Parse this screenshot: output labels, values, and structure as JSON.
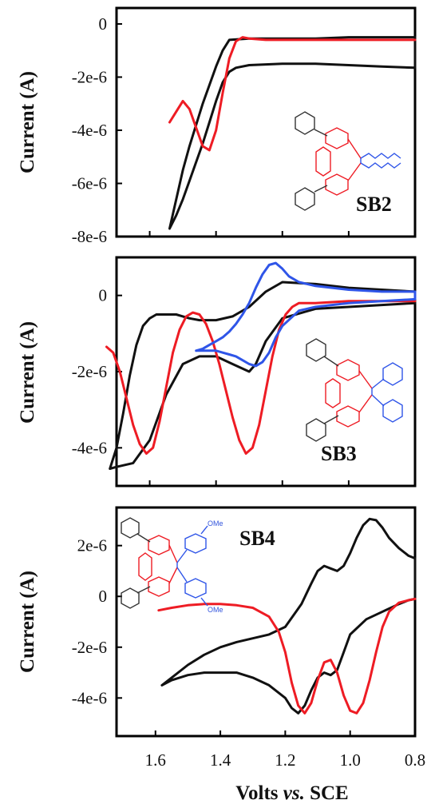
{
  "colors": {
    "black_trace": "#111111",
    "red_trace": "#ee1c24",
    "blue_trace": "#2f55e8",
    "ring_black": "#333333",
    "ring_red": "#ee1c24",
    "ring_blue": "#2f55e8"
  },
  "x_axis": {
    "label": "Volts vs. SCE",
    "label_main": "Volts ",
    "label_italic": "vs.",
    "label_tail": " SCE",
    "tick_labels": [
      "1.6",
      "1.4",
      "1.2",
      "1.0",
      "0.8"
    ]
  },
  "chart_data": [
    {
      "type": "line",
      "compound": "SB2",
      "ylabel": "Current (A)",
      "xlim": [
        1.7,
        0.8
      ],
      "ylim": [
        -8e-06,
        6e-07
      ],
      "xticks": [
        1.6,
        1.4,
        1.2,
        1.0,
        0.8
      ],
      "yticks": [
        0,
        -2e-06,
        -4e-06,
        -6e-06,
        -8e-06
      ],
      "ytick_labels": [
        "0",
        "-2e-6",
        "-4e-6",
        "-6e-6",
        "-8e-6"
      ],
      "series": [
        {
          "color": "black",
          "x": [
            1.54,
            1.52,
            1.5,
            1.48,
            1.46,
            1.44,
            1.42,
            1.4,
            1.38,
            1.36,
            1.3,
            1.2,
            1.1,
            1.0,
            0.9,
            0.8,
            0.8,
            0.9,
            1.0,
            1.1,
            1.2,
            1.3,
            1.34,
            1.36,
            1.38,
            1.4,
            1.42,
            1.44,
            1.46,
            1.48,
            1.5,
            1.52,
            1.54
          ],
          "y": [
            -7.7e-06,
            -6.6e-06,
            -5.5e-06,
            -4.6e-06,
            -3.8e-06,
            -3e-06,
            -2.3e-06,
            -1.6e-06,
            -1e-06,
            -6e-07,
            -5.5e-07,
            -5.5e-07,
            -5.5e-07,
            -5e-07,
            -5e-07,
            -5e-07,
            -1.65e-06,
            -1.6e-06,
            -1.55e-06,
            -1.5e-06,
            -1.5e-06,
            -1.55e-06,
            -1.65e-06,
            -1.8e-06,
            -2.2e-06,
            -2.9e-06,
            -3.7e-06,
            -4.5e-06,
            -5.2e-06,
            -5.9e-06,
            -6.6e-06,
            -7.2e-06,
            -7.7e-06
          ]
        },
        {
          "color": "red",
          "x": [
            1.54,
            1.52,
            1.5,
            1.48,
            1.46,
            1.44,
            1.42,
            1.4,
            1.38,
            1.36,
            1.34,
            1.32,
            1.3,
            1.25,
            1.2,
            1.1,
            1.0,
            0.9,
            0.8
          ],
          "y": [
            -3.7e-06,
            -3.3e-06,
            -2.9e-06,
            -3.2e-06,
            -3.9e-06,
            -4.6e-06,
            -4.75e-06,
            -4e-06,
            -2.6e-06,
            -1.3e-06,
            -6.5e-07,
            -5e-07,
            -5.5e-07,
            -6e-07,
            -6e-07,
            -6e-07,
            -6e-07,
            -6e-07,
            -6e-07
          ]
        }
      ]
    },
    {
      "type": "line",
      "compound": "SB3",
      "ylabel": "Current (A)",
      "xlim": [
        1.7,
        0.8
      ],
      "ylim": [
        -5e-06,
        1e-06
      ],
      "xticks": [
        1.6,
        1.4,
        1.2,
        1.0,
        0.8
      ],
      "yticks": [
        0,
        -2e-06,
        -4e-06
      ],
      "ytick_labels": [
        "0",
        "-2e-6",
        "-4e-6"
      ],
      "series": [
        {
          "color": "black",
          "x": [
            1.72,
            1.7,
            1.68,
            1.66,
            1.64,
            1.62,
            1.6,
            1.58,
            1.55,
            1.52,
            1.5,
            1.48,
            1.45,
            1.4,
            1.35,
            1.3,
            1.25,
            1.2,
            1.1,
            1.0,
            0.9,
            0.8,
            0.8,
            0.9,
            1.0,
            1.1,
            1.2,
            1.25,
            1.28,
            1.3,
            1.35,
            1.4,
            1.45,
            1.5,
            1.55,
            1.6,
            1.65,
            1.7,
            1.72
          ],
          "y": [
            -4.55e-06,
            -4e-06,
            -3.1e-06,
            -2.1e-06,
            -1.3e-06,
            -8e-07,
            -6e-07,
            -5e-07,
            -5e-07,
            -5e-07,
            -5.5e-07,
            -6e-07,
            -6.5e-07,
            -6.5e-07,
            -5.5e-07,
            -3e-07,
            1e-07,
            3.5e-07,
            3e-07,
            2e-07,
            1.5e-07,
            1e-07,
            -2e-07,
            -2.5e-07,
            -3e-07,
            -3.5e-07,
            -6e-07,
            -1.2e-06,
            -1.8e-06,
            -2e-06,
            -1.8e-06,
            -1.6e-06,
            -1.6e-06,
            -1.8e-06,
            -2.6e-06,
            -3.8e-06,
            -4.4e-06,
            -4.5e-06,
            -4.55e-06
          ]
        },
        {
          "color": "red",
          "x": [
            1.73,
            1.71,
            1.69,
            1.67,
            1.65,
            1.63,
            1.61,
            1.59,
            1.57,
            1.55,
            1.53,
            1.51,
            1.49,
            1.47,
            1.45,
            1.43,
            1.41,
            1.39,
            1.37,
            1.35,
            1.33,
            1.31,
            1.29,
            1.27,
            1.25,
            1.23,
            1.21,
            1.19,
            1.17,
            1.15,
            1.1,
            1.0,
            0.9,
            0.8
          ],
          "y": [
            -1.35e-06,
            -1.5e-06,
            -2e-06,
            -2.7e-06,
            -3.4e-06,
            -3.9e-06,
            -4.15e-06,
            -4e-06,
            -3.3e-06,
            -2.4e-06,
            -1.5e-06,
            -9e-07,
            -5.5e-07,
            -4.5e-07,
            -5e-07,
            -7.5e-07,
            -1.2e-06,
            -1.8e-06,
            -2.5e-06,
            -3.2e-06,
            -3.8e-06,
            -4.15e-06,
            -4e-06,
            -3.4e-06,
            -2.5e-06,
            -1.6e-06,
            -9e-07,
            -5e-07,
            -3e-07,
            -2e-07,
            -2e-07,
            -1.5e-07,
            -1.5e-07,
            -1.5e-07
          ]
        },
        {
          "color": "blue",
          "x": [
            1.46,
            1.44,
            1.42,
            1.4,
            1.38,
            1.36,
            1.34,
            1.32,
            1.3,
            1.28,
            1.26,
            1.24,
            1.22,
            1.2,
            1.18,
            1.15,
            1.1,
            1.0,
            0.9,
            0.8,
            0.8,
            0.9,
            1.0,
            1.1,
            1.15,
            1.2,
            1.22,
            1.24,
            1.26,
            1.28,
            1.3,
            1.32,
            1.34,
            1.36,
            1.38,
            1.4,
            1.42,
            1.44,
            1.46
          ],
          "y": [
            -1.45e-06,
            -1.4e-06,
            -1.3e-06,
            -1.2e-06,
            -1.1e-06,
            -9.5e-07,
            -7.5e-07,
            -5e-07,
            -2e-07,
            2e-07,
            5.5e-07,
            8e-07,
            8.5e-07,
            7e-07,
            5e-07,
            3.5e-07,
            2.5e-07,
            1.5e-07,
            1e-07,
            1e-07,
            -1e-07,
            -1.5e-07,
            -2e-07,
            -3e-07,
            -4e-07,
            -8e-07,
            -1.1e-06,
            -1.5e-06,
            -1.75e-06,
            -1.85e-06,
            -1.8e-06,
            -1.7e-06,
            -1.6e-06,
            -1.55e-06,
            -1.5e-06,
            -1.45e-06,
            -1.45e-06,
            -1.45e-06,
            -1.45e-06
          ]
        }
      ]
    },
    {
      "type": "line",
      "compound": "SB4",
      "ylabel": "Current (A)",
      "xlim": [
        1.72,
        0.8
      ],
      "ylim": [
        -5.5e-06,
        3.5e-06
      ],
      "xticks": [
        1.6,
        1.4,
        1.2,
        1.0,
        0.8
      ],
      "yticks": [
        2e-06,
        0,
        -2e-06,
        -4e-06
      ],
      "ytick_labels": [
        "2e-6",
        "0",
        "-2e-6",
        "-4e-6"
      ],
      "series": [
        {
          "color": "black",
          "x": [
            1.58,
            1.55,
            1.5,
            1.45,
            1.4,
            1.35,
            1.3,
            1.25,
            1.2,
            1.15,
            1.12,
            1.1,
            1.08,
            1.06,
            1.04,
            1.02,
            1.0,
            0.98,
            0.96,
            0.94,
            0.92,
            0.9,
            0.88,
            0.85,
            0.82,
            0.8,
            0.8,
            0.82,
            0.85,
            0.9,
            0.95,
            1.0,
            1.02,
            1.04,
            1.06,
            1.08,
            1.1,
            1.12,
            1.14,
            1.16,
            1.18,
            1.2,
            1.25,
            1.3,
            1.35,
            1.4,
            1.45,
            1.5,
            1.55,
            1.58
          ],
          "y": [
            -3.5e-06,
            -3.2e-06,
            -2.7e-06,
            -2.3e-06,
            -2e-06,
            -1.8e-06,
            -1.65e-06,
            -1.5e-06,
            -1.2e-06,
            -3e-07,
            5e-07,
            1e-06,
            1.2e-06,
            1.1e-06,
            1e-06,
            1.2e-06,
            1.7e-06,
            2.3e-06,
            2.8e-06,
            3.05e-06,
            3e-06,
            2.7e-06,
            2.3e-06,
            1.9e-06,
            1.6e-06,
            1.5e-06,
            -1e-07,
            -1.5e-07,
            -3e-07,
            -6e-07,
            -9e-07,
            -1.5e-06,
            -2.2e-06,
            -2.9e-06,
            -3.1e-06,
            -3e-06,
            -3.2e-06,
            -3.7e-06,
            -4.3e-06,
            -4.6e-06,
            -4.4e-06,
            -4e-06,
            -3.5e-06,
            -3.2e-06,
            -3e-06,
            -3e-06,
            -3e-06,
            -3.1e-06,
            -3.3e-06,
            -3.5e-06
          ]
        },
        {
          "color": "red",
          "x": [
            1.59,
            1.55,
            1.5,
            1.45,
            1.4,
            1.35,
            1.3,
            1.25,
            1.22,
            1.2,
            1.18,
            1.16,
            1.14,
            1.12,
            1.1,
            1.08,
            1.06,
            1.04,
            1.02,
            1.0,
            0.98,
            0.96,
            0.94,
            0.92,
            0.9,
            0.88,
            0.85,
            0.82,
            0.8
          ],
          "y": [
            -5.5e-07,
            -4.5e-07,
            -3.5e-07,
            -3e-07,
            -3e-07,
            -3.5e-07,
            -4.5e-07,
            -8e-07,
            -1.4e-06,
            -2.2e-06,
            -3.4e-06,
            -4.3e-06,
            -4.6e-06,
            -4.2e-06,
            -3.3e-06,
            -2.6e-06,
            -2.5e-06,
            -3e-06,
            -3.9e-06,
            -4.5e-06,
            -4.6e-06,
            -4.2e-06,
            -3.3e-06,
            -2.2e-06,
            -1.2e-06,
            -6e-07,
            -2.5e-07,
            -1.5e-07,
            -1e-07
          ]
        }
      ]
    }
  ]
}
